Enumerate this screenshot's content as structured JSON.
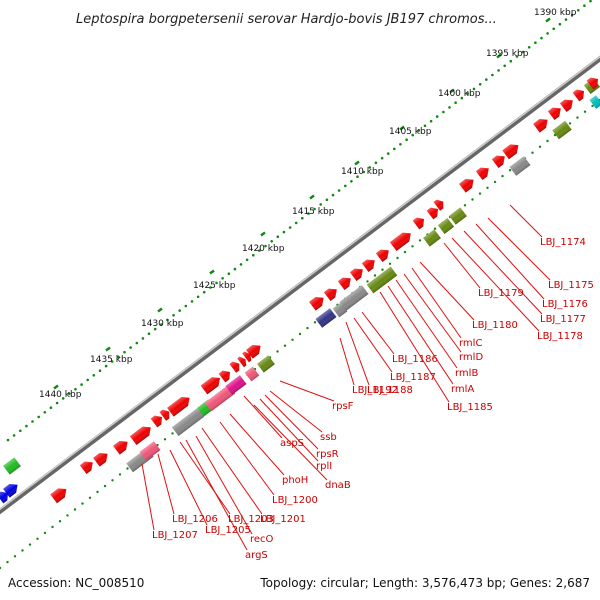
{
  "title": "Leptospira borgpetersenii serovar Hardjo-bovis JB197 chromos...",
  "footer": {
    "accession": "Accession: NC_008510",
    "summary": "Topology: circular; Length: 3,576,473 bp; Genes: 2,687"
  },
  "scale_labels": [
    "1390 kbp",
    "1395 kbp",
    "1400 kbp",
    "1405 kbp",
    "1410 kbp",
    "1415 kbp",
    "1420 kbp",
    "1425 kbp",
    "1430 kbp",
    "1435 kbp",
    "1440 kbp"
  ],
  "gene_labels": [
    "LBJ_1174",
    "LBJ_1175",
    "LBJ_1176",
    "LBJ_1177",
    "LBJ_1178",
    "LBJ_1179",
    "LBJ_1180",
    "rmlC",
    "rmlD",
    "rmlB",
    "rmlA",
    "LBJ_1185",
    "LBJ_1186",
    "LBJ_1187",
    "LBJ_1188",
    "LBJ_1192",
    "rpsF",
    "ssb",
    "rpsR",
    "rplI",
    "dnaB",
    "aspS",
    "phoH",
    "LBJ_1200",
    "LBJ_1201",
    "recO",
    "LBJ_1203",
    "argS",
    "LBJ_1205",
    "LBJ_1206",
    "LBJ_1207"
  ],
  "colors": {
    "label": "#cc0000",
    "cds": "#ee0000",
    "rna": "#888888",
    "green": "#22bb22",
    "olive": "#668811",
    "blue": "#0000dd",
    "navy": "#333388",
    "pink": "#ee5577",
    "magenta": "#dd1188",
    "cyan": "#00bbbb",
    "tick": "#118811"
  }
}
